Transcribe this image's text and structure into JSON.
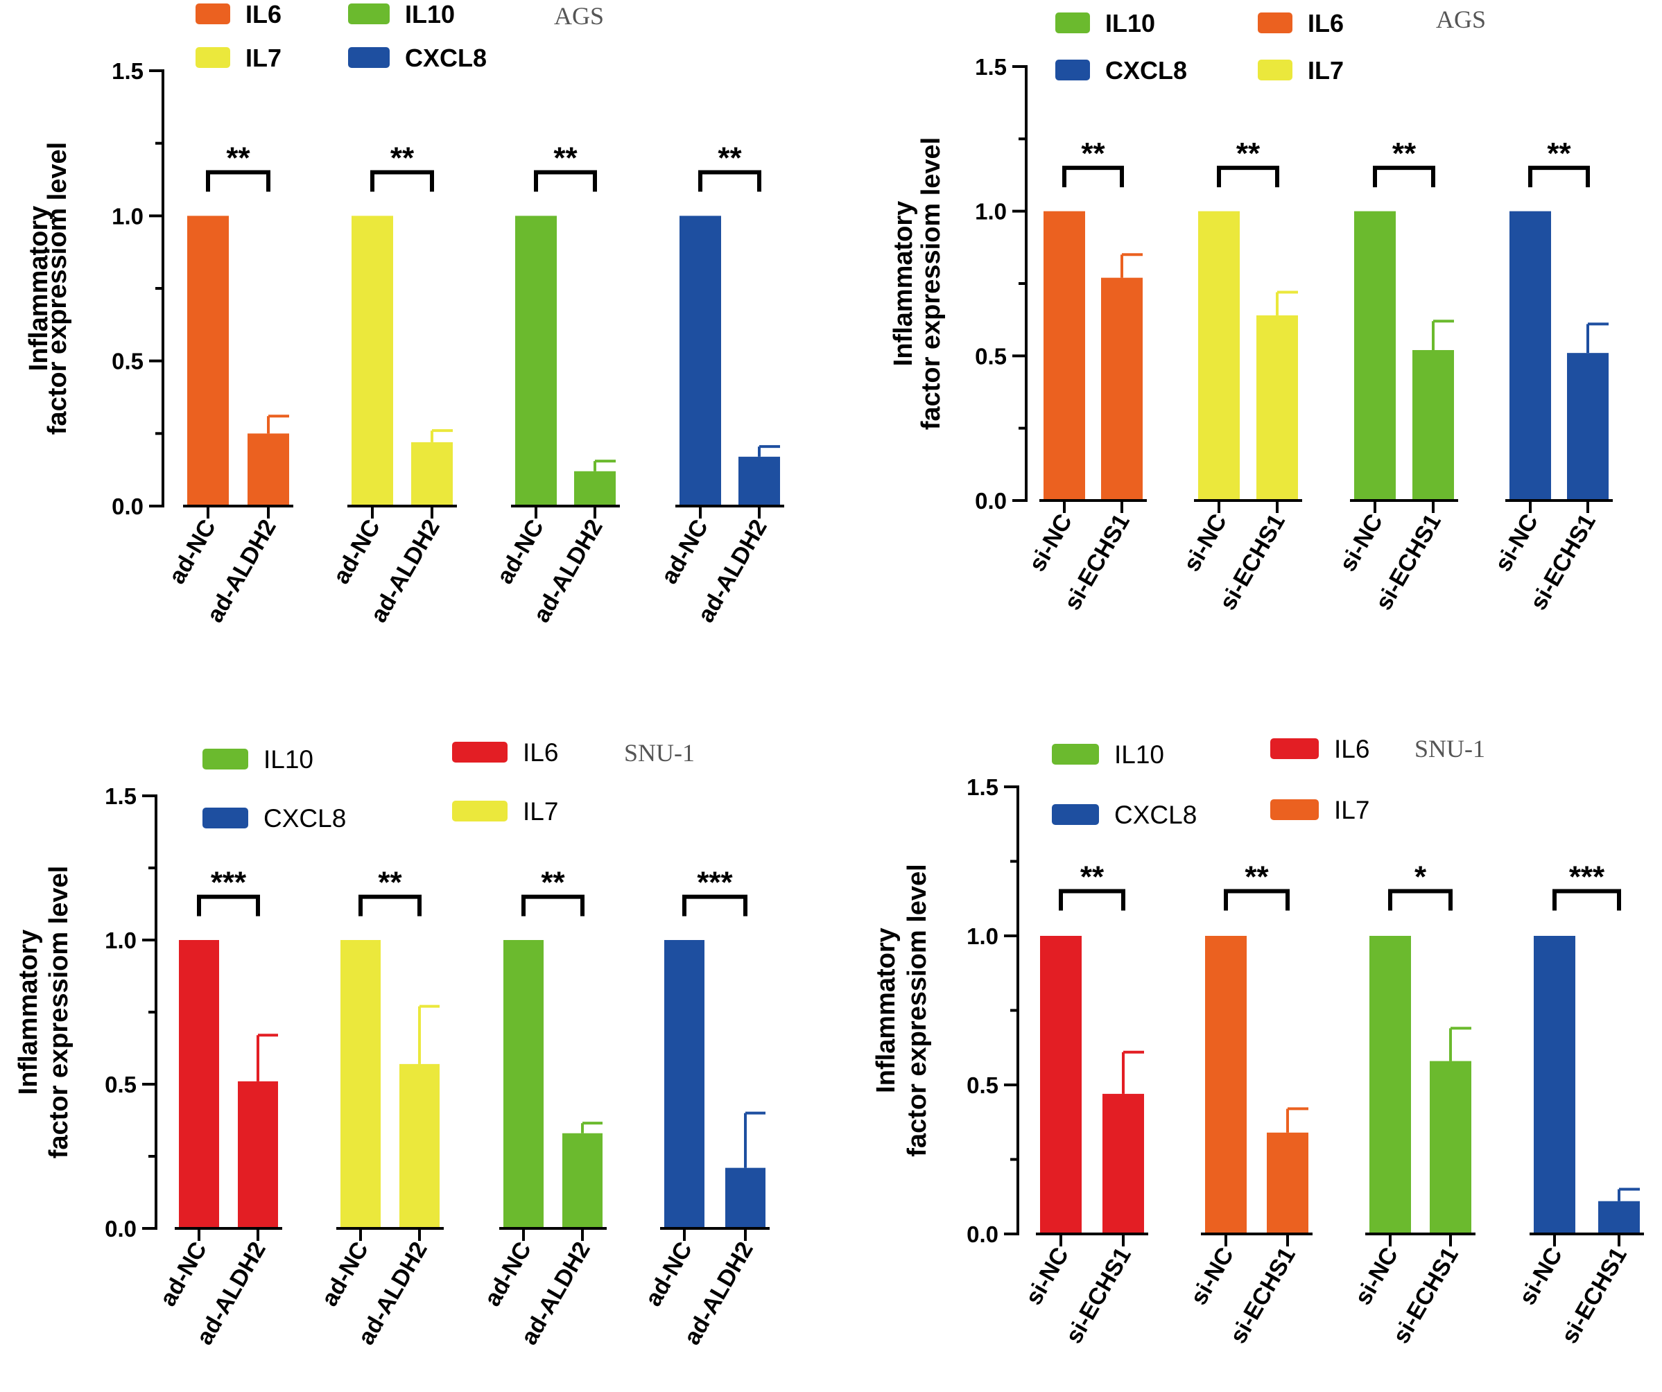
{
  "chart_data": [
    {
      "type": "bar",
      "cell_line": "AGS",
      "ylabel_line1": "Inflammatory",
      "ylabel_line2": "factor expressiom level",
      "ylim": [
        0,
        1.5
      ],
      "yticks": [
        "0.0",
        "0.5",
        "1.0",
        "1.5"
      ],
      "legend": [
        {
          "name": "IL6",
          "color": "#EB6120"
        },
        {
          "name": "IL10",
          "color": "#6BBA2E"
        },
        {
          "name": "IL7",
          "color": "#EBE83C"
        },
        {
          "name": "CXCL8",
          "color": "#1E4FA0"
        }
      ],
      "groups": [
        {
          "factor": "IL6",
          "color": "#EB6120",
          "labels": [
            "ad-NC",
            "ad-ALDH2"
          ],
          "values": [
            1.0,
            0.25
          ],
          "errors": [
            0,
            0.06
          ],
          "sig": "**"
        },
        {
          "factor": "IL7",
          "color": "#EBE83C",
          "labels": [
            "ad-NC",
            "ad-ALDH2"
          ],
          "values": [
            1.0,
            0.22
          ],
          "errors": [
            0,
            0.04
          ],
          "sig": "**"
        },
        {
          "factor": "IL10",
          "color": "#6BBA2E",
          "labels": [
            "ad-NC",
            "ad-ALDH2"
          ],
          "values": [
            1.0,
            0.12
          ],
          "errors": [
            0,
            0.035
          ],
          "sig": "**"
        },
        {
          "factor": "CXCL8",
          "color": "#1E4FA0",
          "labels": [
            "ad-NC",
            "ad-ALDH2"
          ],
          "values": [
            1.0,
            0.17
          ],
          "errors": [
            0,
            0.035
          ],
          "sig": "**"
        }
      ]
    },
    {
      "type": "bar",
      "cell_line": "AGS",
      "ylabel_line1": "Inflammatory",
      "ylabel_line2": "factor expressiom level",
      "ylim": [
        0,
        1.5
      ],
      "yticks": [
        "0.0",
        "0.5",
        "1.0",
        "1.5"
      ],
      "legend": [
        {
          "name": "IL10",
          "color": "#6BBA2E"
        },
        {
          "name": "IL6",
          "color": "#EB6120"
        },
        {
          "name": "CXCL8",
          "color": "#1E4FA0"
        },
        {
          "name": "IL7",
          "color": "#EBE83C"
        }
      ],
      "groups": [
        {
          "factor": "IL6",
          "color": "#EB6120",
          "labels": [
            "si-NC",
            "si-ECHS1"
          ],
          "values": [
            1.0,
            0.77
          ],
          "errors": [
            0,
            0.08
          ],
          "sig": "**"
        },
        {
          "factor": "IL7",
          "color": "#EBE83C",
          "labels": [
            "si-NC",
            "si-ECHS1"
          ],
          "values": [
            1.0,
            0.64
          ],
          "errors": [
            0,
            0.08
          ],
          "sig": "**"
        },
        {
          "factor": "IL10",
          "color": "#6BBA2E",
          "labels": [
            "si-NC",
            "si-ECHS1"
          ],
          "values": [
            1.0,
            0.52
          ],
          "errors": [
            0,
            0.1
          ],
          "sig": "**"
        },
        {
          "factor": "CXCL8",
          "color": "#1E4FA0",
          "labels": [
            "si-NC",
            "si-ECHS1"
          ],
          "values": [
            1.0,
            0.51
          ],
          "errors": [
            0,
            0.1
          ],
          "sig": "**"
        }
      ]
    },
    {
      "type": "bar",
      "cell_line": "SNU-1",
      "ylabel_line1": "Inflammatory",
      "ylabel_line2": "factor expressiom level",
      "ylim": [
        0,
        1.5
      ],
      "yticks": [
        "0.0",
        "0.5",
        "1.0",
        "1.5"
      ],
      "legend": [
        {
          "name": "IL10",
          "color": "#6BBA2E"
        },
        {
          "name": "IL6",
          "color": "#E31E24"
        },
        {
          "name": "CXCL8",
          "color": "#1E4FA0"
        },
        {
          "name": "IL7",
          "color": "#EBE83C"
        }
      ],
      "groups": [
        {
          "factor": "IL6",
          "color": "#E31E24",
          "labels": [
            "ad-NC",
            "ad-ALDH2"
          ],
          "values": [
            1.0,
            0.51
          ],
          "errors": [
            0,
            0.16
          ],
          "sig": "***"
        },
        {
          "factor": "IL7",
          "color": "#EBE83C",
          "labels": [
            "ad-NC",
            "ad-ALDH2"
          ],
          "values": [
            1.0,
            0.57
          ],
          "errors": [
            0,
            0.2
          ],
          "sig": "**"
        },
        {
          "factor": "IL10",
          "color": "#6BBA2E",
          "labels": [
            "ad-NC",
            "ad-ALDH2"
          ],
          "values": [
            1.0,
            0.33
          ],
          "errors": [
            0,
            0.035
          ],
          "sig": "**"
        },
        {
          "factor": "CXCL8",
          "color": "#1E4FA0",
          "labels": [
            "ad-NC",
            "ad-ALDH2"
          ],
          "values": [
            1.0,
            0.21
          ],
          "errors": [
            0,
            0.19
          ],
          "sig": "***"
        }
      ]
    },
    {
      "type": "bar",
      "cell_line": "SNU-1",
      "ylabel_line1": "Inflammatory",
      "ylabel_line2": "factor expressiom level",
      "ylim": [
        0,
        1.5
      ],
      "yticks": [
        "0.0",
        "0.5",
        "1.0",
        "1.5"
      ],
      "legend": [
        {
          "name": "IL10",
          "color": "#6BBA2E"
        },
        {
          "name": "IL6",
          "color": "#E31E24"
        },
        {
          "name": "CXCL8",
          "color": "#1E4FA0"
        },
        {
          "name": "IL7",
          "color": "#EB6120"
        }
      ],
      "groups": [
        {
          "factor": "IL6",
          "color": "#E31E24",
          "labels": [
            "si-NC",
            "si-ECHS1"
          ],
          "values": [
            1.0,
            0.47
          ],
          "errors": [
            0,
            0.14
          ],
          "sig": "**"
        },
        {
          "factor": "IL7",
          "color": "#EB6120",
          "labels": [
            "si-NC",
            "si-ECHS1"
          ],
          "values": [
            1.0,
            0.34
          ],
          "errors": [
            0,
            0.08
          ],
          "sig": "**"
        },
        {
          "factor": "IL10",
          "color": "#6BBA2E",
          "labels": [
            "si-NC",
            "si-ECHS1"
          ],
          "values": [
            1.0,
            0.58
          ],
          "errors": [
            0,
            0.11
          ],
          "sig": "*"
        },
        {
          "factor": "CXCL8",
          "color": "#1E4FA0",
          "labels": [
            "si-NC",
            "si-ECHS1"
          ],
          "values": [
            1.0,
            0.11
          ],
          "errors": [
            0,
            0.04
          ],
          "sig": "***"
        }
      ]
    }
  ]
}
